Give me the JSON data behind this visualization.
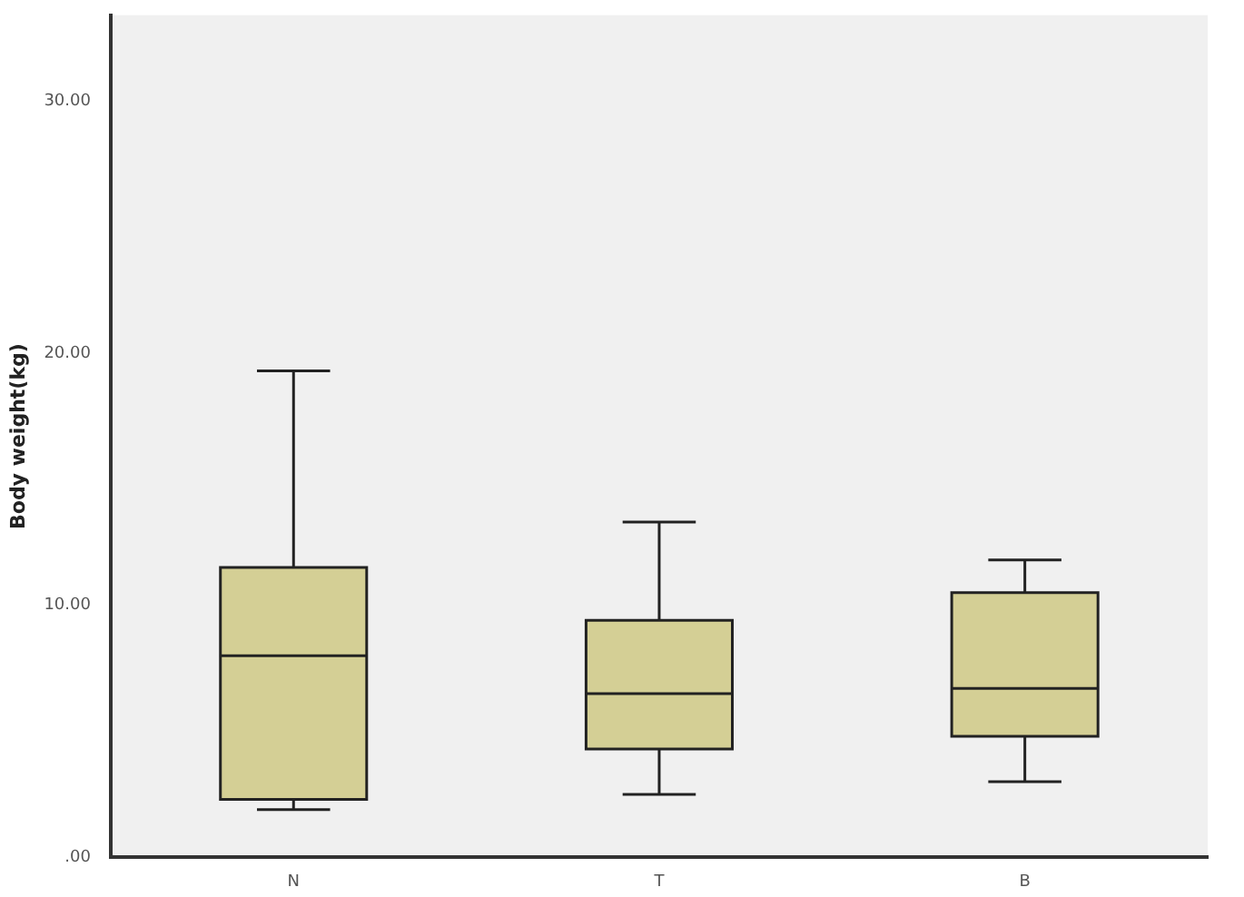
{
  "chart_data": {
    "type": "box",
    "ylabel": "Body weight(kg)",
    "categories": [
      "N",
      "T",
      "B"
    ],
    "color": "#d4cf95",
    "boxes": [
      {
        "low": 1.9,
        "q1": 2.3,
        "median": 8.0,
        "q3": 11.5,
        "high": 19.3
      },
      {
        "low": 2.5,
        "q1": 4.3,
        "median": 6.5,
        "q3": 9.4,
        "high": 13.3
      },
      {
        "low": 3.0,
        "q1": 4.8,
        "median": 6.7,
        "q3": 10.5,
        "high": 11.8
      }
    ],
    "ylim": [
      0,
      33.4
    ],
    "yticks": [
      {
        "value": 0,
        "label": ".00"
      },
      {
        "value": 10,
        "label": "10.00"
      },
      {
        "value": 20,
        "label": "20.00"
      },
      {
        "value": 30,
        "label": "30.00"
      }
    ],
    "grid": false,
    "legend": false
  }
}
